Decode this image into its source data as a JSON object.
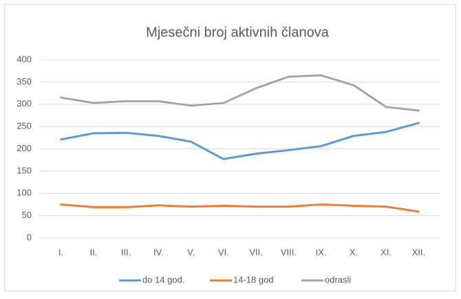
{
  "chart_data": {
    "type": "line",
    "title": "Mjesečni broj aktivnih članova",
    "categories": [
      "I.",
      "II.",
      "III.",
      "IV.",
      "V.",
      "VI.",
      "VII.",
      "VIII.",
      "IX.",
      "X.",
      "XI.",
      "XII."
    ],
    "series": [
      {
        "name": "do 14 god.",
        "color": "#5b9bd5",
        "values": [
          221,
          235,
          236,
          229,
          216,
          177,
          189,
          197,
          206,
          229,
          238,
          258
        ]
      },
      {
        "name": "14-18 god",
        "color": "#ed7d31",
        "values": [
          75,
          69,
          69,
          73,
          70,
          72,
          70,
          70,
          75,
          72,
          70,
          59
        ]
      },
      {
        "name": "odrasli",
        "color": "#a5a5a5",
        "values": [
          315,
          303,
          307,
          307,
          297,
          303,
          336,
          362,
          365,
          343,
          294,
          286
        ]
      }
    ],
    "ylim": [
      0,
      400
    ],
    "yticks": [
      0,
      50,
      100,
      150,
      200,
      250,
      300,
      350,
      400
    ],
    "grid": true,
    "legend": "bottom"
  }
}
